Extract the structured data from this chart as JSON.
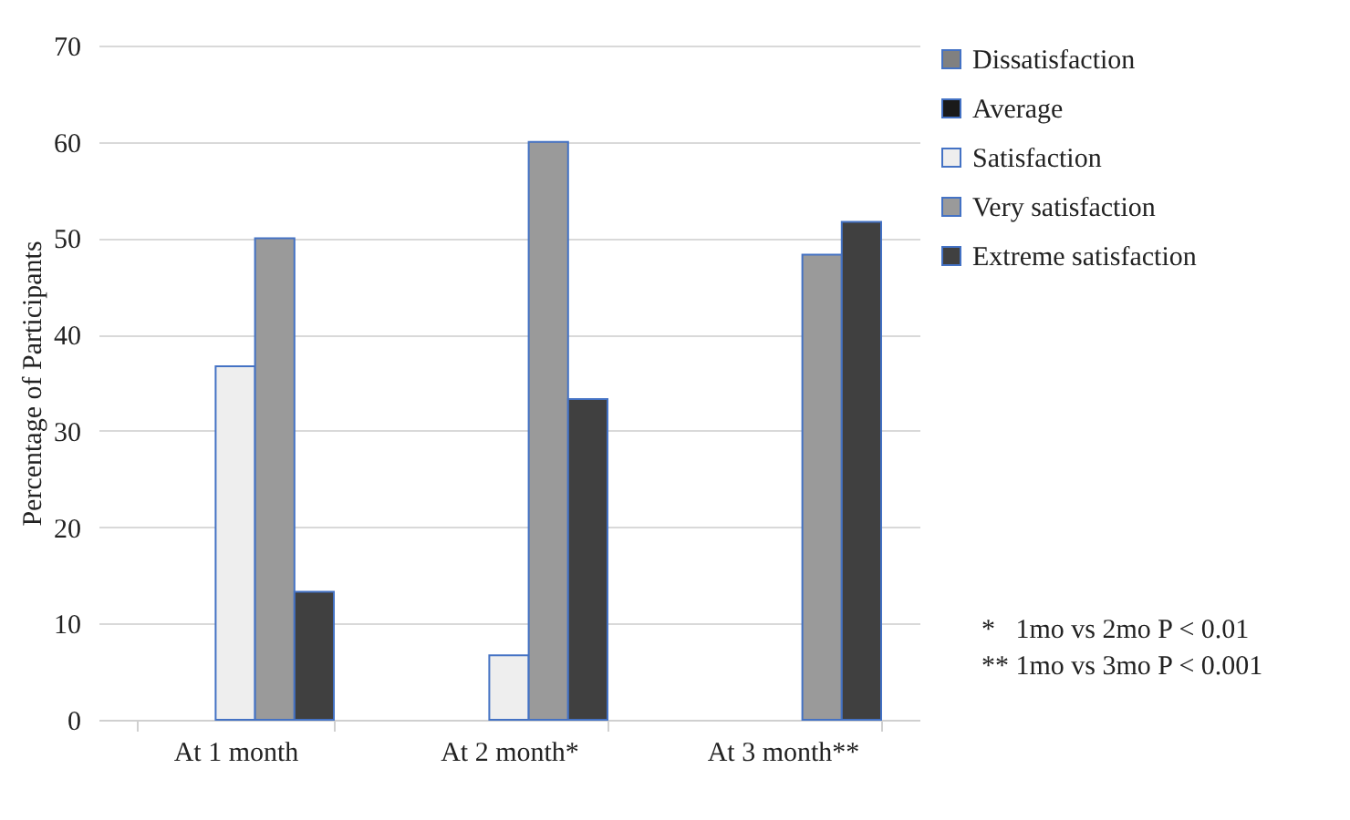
{
  "chart_data": {
    "type": "bar",
    "ylabel": "Percentage of Participants",
    "categories": [
      "At 1 month",
      "At 2 month*",
      "At 3 month**"
    ],
    "series": [
      {
        "name": "Dissatisfaction",
        "color": "#808080",
        "values": [
          null,
          null,
          null
        ]
      },
      {
        "name": "Average",
        "color": "#1a1a1a",
        "values": [
          null,
          null,
          null
        ]
      },
      {
        "name": "Satisfaction",
        "color": "#eeeeee",
        "values": [
          36.7,
          6.7,
          null
        ]
      },
      {
        "name": "Very satisfaction",
        "color": "#9a9a9a",
        "values": [
          50,
          60,
          48.3
        ]
      },
      {
        "name": "Extreme satisfaction",
        "color": "#404040",
        "values": [
          13.3,
          33.3,
          51.7
        ]
      }
    ],
    "ylim": [
      0,
      70
    ],
    "yticks": [
      0,
      10,
      20,
      30,
      40,
      50,
      60,
      70
    ],
    "grid": "y",
    "legend": "right",
    "annotations": [
      "*   1mo vs 2mo P < 0.01",
      "** 1mo vs 3mo P < 0.001"
    ]
  }
}
